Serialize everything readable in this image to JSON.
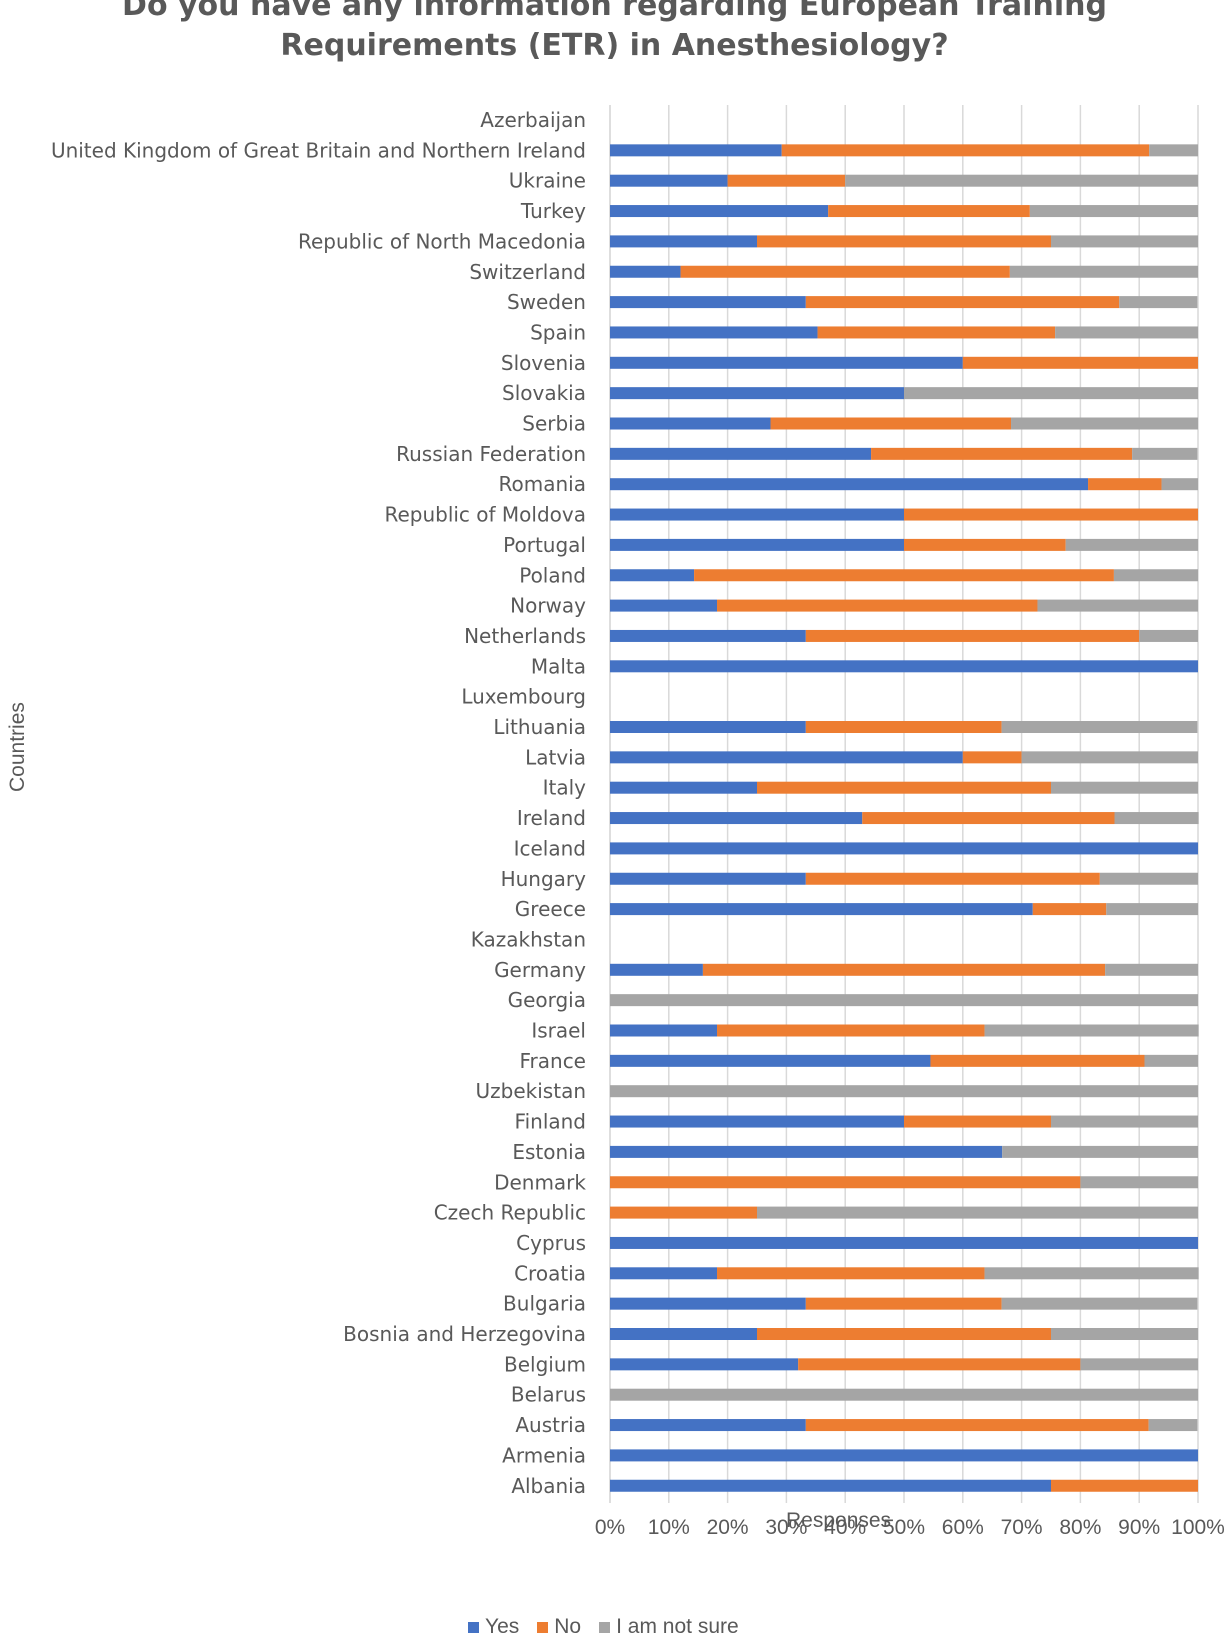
{
  "chart_data": {
    "type": "bar",
    "orientation": "horizontal",
    "stacked": "percent",
    "title": "Do you have any information regarding European Training Requirements (ETR) in Anesthesiology?",
    "title_lines": [
      "Do you have any information regarding European Training",
      "Requirements (ETR) in Anesthesiology?"
    ],
    "xlabel": "Responses",
    "ylabel": "Countries",
    "xlim": [
      0,
      100
    ],
    "xticks": [
      "0%",
      "10%",
      "20%",
      "30%",
      "40%",
      "50%",
      "60%",
      "70%",
      "80%",
      "90%",
      "100%"
    ],
    "grid": true,
    "legend_position": "bottom",
    "categories": [
      "Azerbaijan",
      "United Kingdom of Great Britain and Northern Ireland",
      "Ukraine",
      "Turkey",
      "Republic of North Macedonia",
      "Switzerland",
      "Sweden",
      "Spain",
      "Slovenia",
      "Slovakia",
      "Serbia",
      "Russian Federation",
      "Romania",
      "Republic of Moldova",
      "Portugal",
      "Poland",
      "Norway",
      "Netherlands",
      "Malta",
      "Luxembourg",
      "Lithuania",
      "Latvia",
      "Italy",
      "Ireland",
      "Iceland",
      "Hungary",
      "Greece",
      "Kazakhstan",
      "Germany",
      "Georgia",
      "Israel",
      "France",
      "Uzbekistan",
      "Finland",
      "Estonia",
      "Denmark",
      "Czech Republic",
      "Cyprus",
      "Croatia",
      "Bulgaria",
      "Bosnia and Herzegovina",
      "Belgium",
      "Belarus",
      "Austria",
      "Armenia",
      "Albania"
    ],
    "series": [
      {
        "name": "Yes",
        "color": "#4472C4",
        "values": [
          0,
          29.2,
          20,
          37.1,
          25,
          12,
          33.3,
          35.3,
          60,
          50,
          27.3,
          44.4,
          81.3,
          50,
          50,
          14.3,
          18.2,
          33.3,
          100,
          0,
          33.3,
          60,
          25,
          42.9,
          100,
          33.3,
          71.9,
          0,
          15.8,
          0,
          18.2,
          54.5,
          0,
          50,
          66.7,
          0,
          0,
          100,
          18.2,
          33.3,
          25,
          32,
          0,
          33.3,
          100,
          75
        ]
      },
      {
        "name": "No",
        "color": "#ED7D31",
        "values": [
          0,
          62.5,
          20,
          34.3,
          50,
          56,
          53.3,
          40.4,
          40,
          0,
          40.9,
          44.4,
          12.5,
          50,
          27.5,
          71.4,
          54.5,
          56.7,
          0,
          0,
          33.3,
          10,
          50,
          42.9,
          0,
          50,
          12.5,
          0,
          68.4,
          0,
          45.5,
          36.4,
          0,
          25,
          0,
          80,
          25,
          0,
          45.5,
          33.3,
          50,
          48,
          0,
          58.3,
          0,
          25
        ]
      },
      {
        "name": "I am not sure",
        "color": "#A5A5A5",
        "values": [
          0,
          8.3,
          60,
          28.6,
          25,
          32,
          13.3,
          24.3,
          0,
          50,
          31.8,
          11.1,
          6.2,
          0,
          22.5,
          14.3,
          27.3,
          10,
          0,
          0,
          33.3,
          30,
          25,
          14.3,
          0,
          16.7,
          15.6,
          0,
          15.8,
          100,
          36.4,
          9.1,
          100,
          25,
          33.3,
          20,
          75,
          0,
          36.4,
          33.3,
          25,
          20,
          100,
          8.3,
          0,
          0
        ]
      }
    ]
  }
}
